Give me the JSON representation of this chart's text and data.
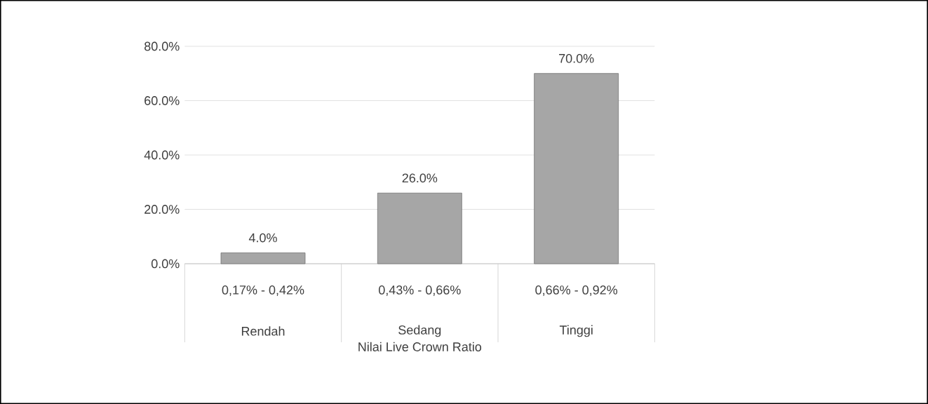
{
  "chart_data": {
    "type": "bar",
    "xlabel": "Nilai Live Crown Ratio",
    "categories": [
      "0,17% - 0,42%",
      "0,43% - 0,66%",
      "0,66% - 0,92%"
    ],
    "annotations": [
      "Rendah",
      "Sedang",
      "Tinggi"
    ],
    "values": [
      4.0,
      26.0,
      70.0
    ],
    "color": "#a6a6a6",
    "value_labels": [
      "4.0%",
      "26.0%",
      "70.0%"
    ],
    "ylim": [
      0,
      80
    ],
    "yticks": [
      {
        "value": 0,
        "label": "0.0%"
      },
      {
        "value": 20,
        "label": "20.0%"
      },
      {
        "value": 40,
        "label": "40.0%"
      },
      {
        "value": 60,
        "label": "60.0%"
      },
      {
        "value": 80,
        "label": "80.0%"
      }
    ],
    "grid": "y"
  }
}
